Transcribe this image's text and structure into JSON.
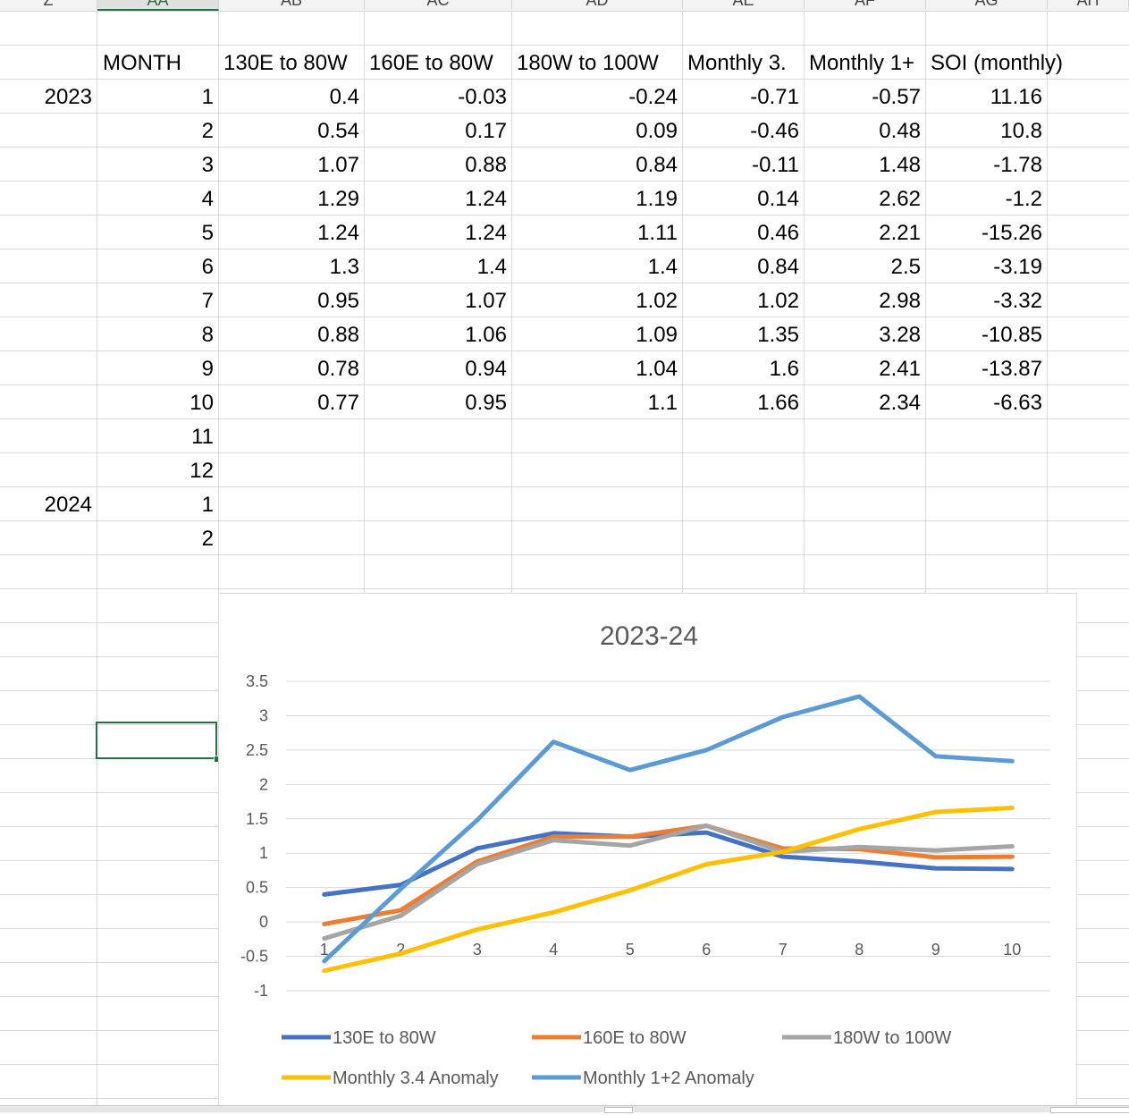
{
  "column_headers": [
    "Z",
    "AA",
    "AB",
    "AC",
    "AD",
    "AE",
    "AF",
    "AG",
    "AH"
  ],
  "selected_column": "AA",
  "table_header": [
    "MONTH",
    "130E to 80W",
    "160E to 80W",
    "180W to 100W",
    "Monthly 3.4",
    "Monthly 1+2",
    "SOI (monthly)"
  ],
  "table_header_display": [
    "MONTH",
    "130E to 80W",
    "160E to 80W",
    "180W to 100W",
    "Monthly 3.",
    "Monthly 1+",
    "SOI (monthly)"
  ],
  "rows": [
    {
      "year": "2023",
      "month": "1",
      "v": [
        "0.4",
        "-0.03",
        "-0.24",
        "-0.71",
        "-0.57",
        "11.16"
      ]
    },
    {
      "year": "",
      "month": "2",
      "v": [
        "0.54",
        "0.17",
        "0.09",
        "-0.46",
        "0.48",
        "10.8"
      ]
    },
    {
      "year": "",
      "month": "3",
      "v": [
        "1.07",
        "0.88",
        "0.84",
        "-0.11",
        "1.48",
        "-1.78"
      ]
    },
    {
      "year": "",
      "month": "4",
      "v": [
        "1.29",
        "1.24",
        "1.19",
        "0.14",
        "2.62",
        "-1.2"
      ]
    },
    {
      "year": "",
      "month": "5",
      "v": [
        "1.24",
        "1.24",
        "1.11",
        "0.46",
        "2.21",
        "-15.26"
      ]
    },
    {
      "year": "",
      "month": "6",
      "v": [
        "1.3",
        "1.4",
        "1.4",
        "0.84",
        "2.5",
        "-3.19"
      ]
    },
    {
      "year": "",
      "month": "7",
      "v": [
        "0.95",
        "1.07",
        "1.02",
        "1.02",
        "2.98",
        "-3.32"
      ]
    },
    {
      "year": "",
      "month": "8",
      "v": [
        "0.88",
        "1.06",
        "1.09",
        "1.35",
        "3.28",
        "-10.85"
      ]
    },
    {
      "year": "",
      "month": "9",
      "v": [
        "0.78",
        "0.94",
        "1.04",
        "1.6",
        "2.41",
        "-13.87"
      ]
    },
    {
      "year": "",
      "month": "10",
      "v": [
        "0.77",
        "0.95",
        "1.1",
        "1.66",
        "2.34",
        "-6.63"
      ]
    },
    {
      "year": "",
      "month": "11",
      "v": [
        "",
        "",
        "",
        "",
        "",
        ""
      ]
    },
    {
      "year": "",
      "month": "12",
      "v": [
        "",
        "",
        "",
        "",
        "",
        ""
      ]
    },
    {
      "year": "2024",
      "month": "1",
      "v": [
        "",
        "",
        "",
        "",
        "",
        ""
      ]
    },
    {
      "year": "",
      "month": "2",
      "v": [
        "",
        "",
        "",
        "",
        "",
        ""
      ]
    }
  ],
  "chart_data": {
    "type": "line",
    "title": "2023-24",
    "xlabel": "",
    "ylabel": "",
    "categories": [
      "1",
      "2",
      "3",
      "4",
      "5",
      "6",
      "7",
      "8",
      "9",
      "10"
    ],
    "ylim": [
      -1,
      3.5
    ],
    "yticks": [
      "3.5",
      "3",
      "2.5",
      "2",
      "1.5",
      "1",
      "0.5",
      "0",
      "-0.5",
      "-1"
    ],
    "grid": true,
    "legend_position": "bottom",
    "series": [
      {
        "name": "130E to 80W",
        "color": "#4472c4",
        "values": [
          0.4,
          0.54,
          1.07,
          1.29,
          1.24,
          1.3,
          0.95,
          0.88,
          0.78,
          0.77
        ]
      },
      {
        "name": "160E to 80W",
        "color": "#ed7d31",
        "values": [
          -0.03,
          0.17,
          0.88,
          1.24,
          1.24,
          1.4,
          1.07,
          1.06,
          0.94,
          0.95
        ]
      },
      {
        "name": "180W to 100W",
        "color": "#a5a5a5",
        "values": [
          -0.24,
          0.09,
          0.84,
          1.19,
          1.11,
          1.4,
          1.02,
          1.09,
          1.04,
          1.1
        ]
      },
      {
        "name": "Monthly 3.4 Anomaly",
        "color": "#ffc000",
        "values": [
          -0.71,
          -0.46,
          -0.11,
          0.14,
          0.46,
          0.84,
          1.02,
          1.35,
          1.6,
          1.66
        ]
      },
      {
        "name": "Monthly 1+2 Anomaly",
        "color": "#5b9bd5",
        "values": [
          -0.57,
          0.48,
          1.48,
          2.62,
          2.21,
          2.5,
          2.98,
          3.28,
          2.41,
          2.34
        ]
      }
    ]
  }
}
